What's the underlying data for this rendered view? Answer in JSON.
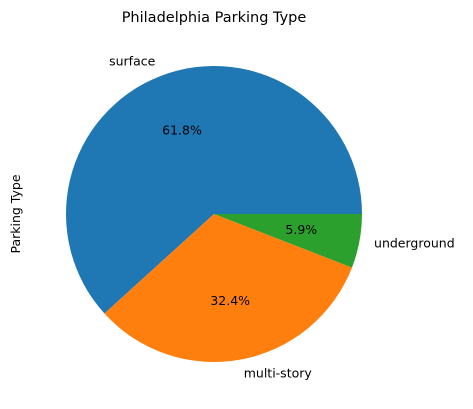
{
  "chart_data": {
    "type": "pie",
    "title": "Philadelphia Parking Type",
    "ylabel": "Parking Type",
    "slices": [
      {
        "label": "surface",
        "value": 61.8,
        "pct_label": "61.8%",
        "color": "#1f77b4"
      },
      {
        "label": "multi-story",
        "value": 32.4,
        "pct_label": "32.4%",
        "color": "#ff7f0e"
      },
      {
        "label": "underground",
        "value": 5.9,
        "pct_label": "5.9%",
        "color": "#2ca02c"
      }
    ]
  }
}
